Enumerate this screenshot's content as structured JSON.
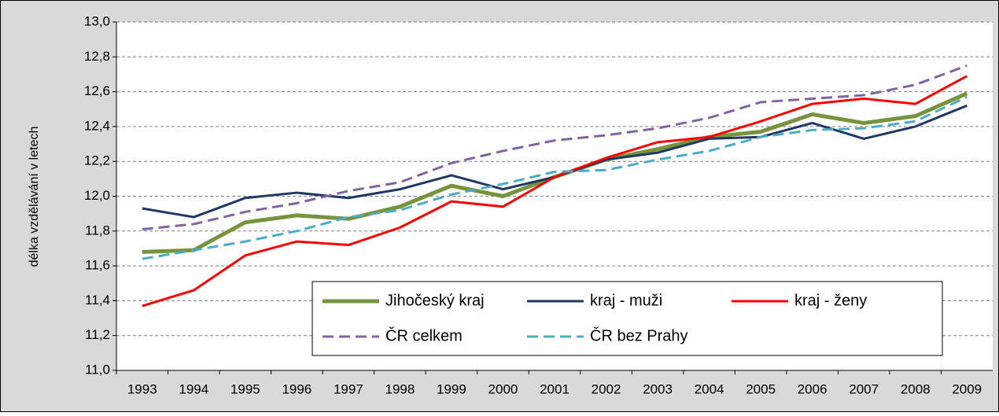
{
  "chart_data": {
    "type": "line",
    "y_label": "délka vzdělávání v letech",
    "categories": [
      "1993",
      "1994",
      "1995",
      "1996",
      "1997",
      "1998",
      "1999",
      "2000",
      "2001",
      "2002",
      "2003",
      "2004",
      "2005",
      "2006",
      "2007",
      "2008",
      "2009"
    ],
    "ylim": [
      11.0,
      13.0
    ],
    "yticks": [
      {
        "value": 11.0,
        "label": "11,0"
      },
      {
        "value": 11.2,
        "label": "11,2"
      },
      {
        "value": 11.4,
        "label": "11,4"
      },
      {
        "value": 11.6,
        "label": "11,6"
      },
      {
        "value": 11.8,
        "label": "11,8"
      },
      {
        "value": 12.0,
        "label": "12,0"
      },
      {
        "value": 12.2,
        "label": "12,2"
      },
      {
        "value": 12.4,
        "label": "12,4"
      },
      {
        "value": 12.6,
        "label": "12,6"
      },
      {
        "value": 12.8,
        "label": "12,8"
      },
      {
        "value": 13.0,
        "label": "13,0"
      }
    ],
    "grid": true,
    "legend": "bottom",
    "series": [
      {
        "name": "Jihočeský kraj",
        "color": "#77933c",
        "width": 5,
        "dashed": false,
        "values": [
          11.68,
          11.69,
          11.85,
          11.89,
          11.87,
          11.94,
          12.06,
          12.0,
          12.11,
          12.21,
          12.27,
          12.34,
          12.37,
          12.47,
          12.42,
          12.46,
          12.59
        ]
      },
      {
        "name": "kraj - muži",
        "color": "#1f3864",
        "width": 3,
        "dashed": false,
        "values": [
          11.93,
          11.88,
          11.99,
          12.02,
          11.99,
          12.04,
          12.12,
          12.04,
          12.11,
          12.21,
          12.25,
          12.33,
          12.34,
          12.42,
          12.33,
          12.4,
          12.52
        ]
      },
      {
        "name": "kraj -  ženy",
        "color": "#ff0000",
        "width": 3,
        "dashed": false,
        "values": [
          11.37,
          11.46,
          11.66,
          11.74,
          11.72,
          11.82,
          11.97,
          11.94,
          12.11,
          12.22,
          12.31,
          12.34,
          12.43,
          12.53,
          12.56,
          12.53,
          12.69
        ]
      },
      {
        "name": "ČR celkem",
        "color": "#8064a2",
        "width": 3,
        "dashed": true,
        "values": [
          11.81,
          11.84,
          11.91,
          11.96,
          12.03,
          12.08,
          12.19,
          12.26,
          12.32,
          12.35,
          12.39,
          12.45,
          12.54,
          12.56,
          12.58,
          12.64,
          12.75
        ]
      },
      {
        "name": "ČR bez Prahy",
        "color": "#4bacc6",
        "width": 3,
        "dashed": true,
        "values": [
          11.64,
          11.69,
          11.74,
          11.8,
          11.88,
          11.92,
          12.01,
          12.07,
          12.14,
          12.15,
          12.21,
          12.26,
          12.34,
          12.38,
          12.39,
          12.43,
          12.57
        ]
      }
    ]
  }
}
